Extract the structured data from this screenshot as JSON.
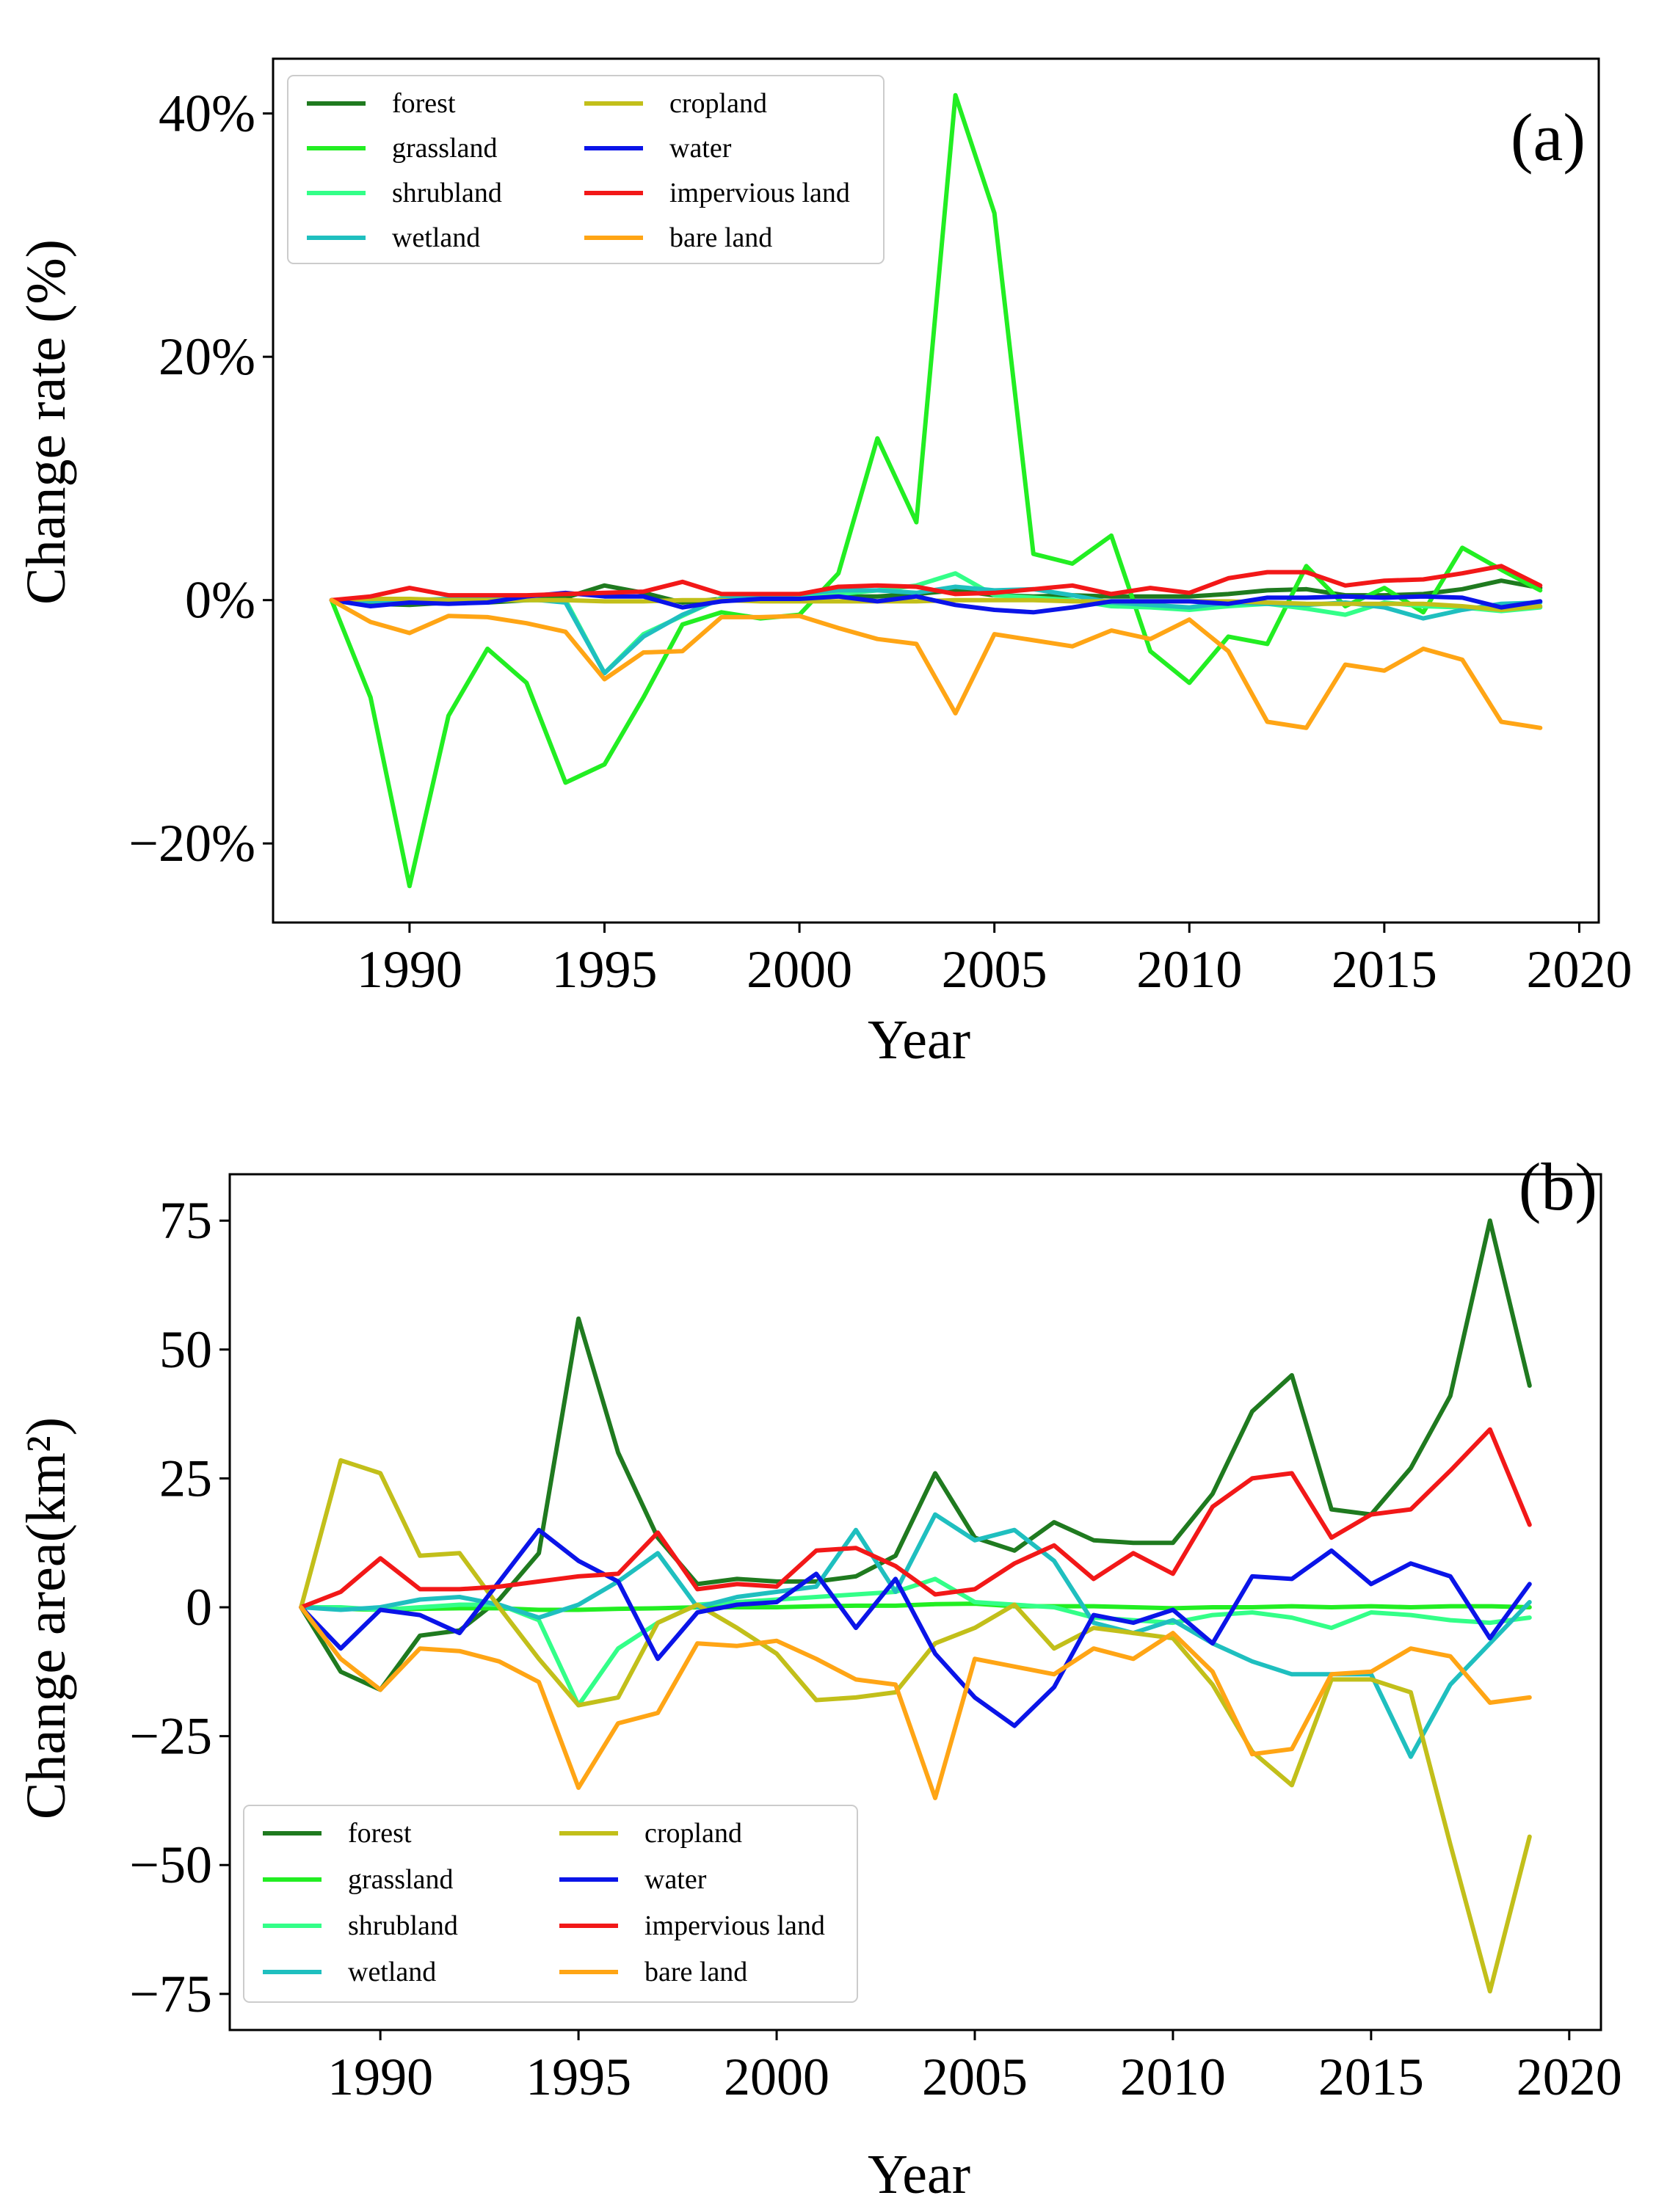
{
  "figure": {
    "background": "#ffffff"
  },
  "chart_data": [
    {
      "type": "line",
      "panel_label": "(a)",
      "xlabel": "Year",
      "ylabel": "Change rate (%)",
      "xlim": [
        1986.5,
        2020.5
      ],
      "ylim": [
        -26.5,
        44.5
      ],
      "x_ticks": [
        1990,
        1995,
        2000,
        2005,
        2010,
        2015,
        2020
      ],
      "y_ticks": [
        -20,
        0,
        20,
        40
      ],
      "y_tick_labels": [
        "−20%",
        "0%",
        "20%",
        "40%"
      ],
      "grid": false,
      "legend_position": "top-left",
      "x": [
        1988,
        1989,
        1990,
        1991,
        1992,
        1993,
        1994,
        1995,
        1996,
        1997,
        1998,
        1999,
        2000,
        2001,
        2002,
        2003,
        2004,
        2005,
        2006,
        2007,
        2008,
        2009,
        2010,
        2011,
        2012,
        2013,
        2014,
        2015,
        2016,
        2017,
        2018,
        2019
      ],
      "series": [
        {
          "name": "forest",
          "color": "#1f7a1f",
          "values": [
            0,
            -0.3,
            -0.4,
            -0.2,
            -0.2,
            0,
            0.2,
            1.2,
            0.6,
            -0.2,
            0.1,
            0.2,
            0.2,
            0.3,
            0.3,
            0.5,
            0.8,
            0.4,
            0.3,
            0.4,
            0.3,
            0.3,
            0.3,
            0.5,
            0.8,
            0.9,
            0.4,
            0.4,
            0.5,
            0.9,
            1.6,
            1.0
          ]
        },
        {
          "name": "grassland",
          "color": "#22ee22",
          "values": [
            0,
            -8,
            -23.5,
            -9.5,
            -4,
            -6.8,
            -15,
            -13.5,
            -8,
            -2,
            -1,
            -1.5,
            -1.2,
            2.2,
            13.3,
            6.4,
            41.5,
            31.8,
            3.8,
            3.0,
            5.3,
            -4.2,
            -6.8,
            -3.0,
            -3.6,
            2.8,
            -0.5,
            1.0,
            -1.0,
            4.3,
            2.5,
            0.8
          ]
        },
        {
          "name": "shrubland",
          "color": "#33ff88",
          "values": [
            0,
            -0.1,
            0,
            -0.1,
            0,
            0,
            0,
            -6,
            -2.8,
            -1.3,
            0.2,
            0.2,
            0.2,
            0.5,
            0.8,
            1.2,
            2.2,
            0.4,
            0.2,
            0,
            -0.5,
            -0.6,
            -0.8,
            -0.5,
            -0.3,
            -0.7,
            -1.2,
            -0.2,
            -0.5,
            -0.6,
            -0.9,
            -0.6
          ]
        },
        {
          "name": "wetland",
          "color": "#1fbfbf",
          "values": [
            0,
            -0.1,
            0,
            0.1,
            0.2,
            0.1,
            -0.2,
            -6,
            -3,
            -1.2,
            0.1,
            0.3,
            0.5,
            0.8,
            0.8,
            0.6,
            1.1,
            0.8,
            0.9,
            0.4,
            -0.2,
            -0.4,
            -0.6,
            -0.2,
            -0.3,
            -0.4,
            -0.2,
            -0.6,
            -1.5,
            -0.8,
            -0.3,
            -0.2
          ]
        },
        {
          "name": "cropland",
          "color": "#c2bf1a",
          "values": [
            0,
            0.1,
            0.1,
            0,
            0,
            0,
            0,
            -0.1,
            -0.1,
            0,
            0,
            -0.1,
            -0.1,
            -0.1,
            -0.1,
            -0.1,
            0,
            0,
            0,
            -0.1,
            -0.1,
            -0.1,
            -0.1,
            -0.1,
            -0.2,
            -0.3,
            -0.3,
            -0.3,
            -0.3,
            -0.5,
            -0.8,
            -0.5
          ]
        },
        {
          "name": "water",
          "color": "#0a14e8",
          "values": [
            0,
            -0.5,
            -0.2,
            -0.3,
            -0.2,
            0.3,
            0.6,
            0.3,
            0.3,
            -0.6,
            -0.1,
            0.1,
            0.1,
            0.3,
            -0.1,
            0.3,
            -0.4,
            -0.8,
            -1.0,
            -0.6,
            -0.1,
            -0.1,
            -0.1,
            -0.3,
            0.2,
            0.2,
            0.3,
            0.2,
            0.3,
            0.2,
            -0.6,
            -0.1
          ]
        },
        {
          "name": "impervious land",
          "color": "#f21818",
          "values": [
            0,
            0.3,
            1.0,
            0.4,
            0.4,
            0.4,
            0.5,
            0.6,
            0.7,
            1.5,
            0.5,
            0.5,
            0.5,
            1.1,
            1.2,
            1.1,
            0.5,
            0.6,
            0.9,
            1.2,
            0.5,
            1.0,
            0.6,
            1.8,
            2.3,
            2.3,
            1.2,
            1.6,
            1.7,
            2.2,
            2.8,
            1.2
          ]
        },
        {
          "name": "bare land",
          "color": "#ffa515",
          "values": [
            0,
            -1.8,
            -2.7,
            -1.3,
            -1.4,
            -1.9,
            -2.6,
            -6.5,
            -4.3,
            -4.2,
            -1.4,
            -1.4,
            -1.3,
            -2.3,
            -3.2,
            -3.6,
            -9.3,
            -2.8,
            -3.3,
            -3.8,
            -2.5,
            -3.2,
            -1.6,
            -4.2,
            -10,
            -10.5,
            -5.3,
            -5.8,
            -4.0,
            -4.9,
            -10,
            -10.5
          ]
        }
      ]
    },
    {
      "type": "line",
      "panel_label": "(b)",
      "xlabel": "Year",
      "ylabel": "Change area(km²)",
      "xlim": [
        1986.2,
        2020.8
      ],
      "ylim": [
        -82,
        84
      ],
      "x_ticks": [
        1990,
        1995,
        2000,
        2005,
        2010,
        2015,
        2020
      ],
      "y_ticks": [
        -75,
        -50,
        -25,
        0,
        25,
        50,
        75
      ],
      "y_tick_labels": [
        "−75",
        "−50",
        "−25",
        "0",
        "25",
        "50",
        "75"
      ],
      "grid": false,
      "legend_position": "bottom-left",
      "x": [
        1988,
        1989,
        1990,
        1991,
        1992,
        1993,
        1994,
        1995,
        1996,
        1997,
        1998,
        1999,
        2000,
        2001,
        2002,
        2003,
        2004,
        2005,
        2006,
        2007,
        2008,
        2009,
        2010,
        2011,
        2012,
        2013,
        2014,
        2015,
        2016,
        2017,
        2018,
        2019
      ],
      "series": [
        {
          "name": "forest",
          "color": "#1f7a1f",
          "values": [
            0,
            -12.5,
            -16,
            -5.5,
            -4.5,
            1.5,
            10.5,
            56,
            30,
            13.5,
            4.5,
            5.5,
            5,
            5,
            6,
            10,
            26,
            13.5,
            11,
            16.5,
            13,
            12.5,
            12.5,
            22,
            38,
            45,
            19,
            18,
            27,
            41,
            75,
            43
          ]
        },
        {
          "name": "grassland",
          "color": "#22ee22",
          "values": [
            0,
            -0.3,
            -0.5,
            -0.3,
            -0.2,
            -0.2,
            -0.5,
            -0.5,
            -0.3,
            -0.2,
            0,
            0,
            0,
            0.2,
            0.3,
            0.3,
            0.6,
            0.7,
            0.2,
            0.2,
            0.2,
            0,
            -0.2,
            0,
            0,
            0.2,
            0,
            0.2,
            0,
            0.2,
            0.2,
            0
          ]
        },
        {
          "name": "shrubland",
          "color": "#33ff88",
          "values": [
            0,
            0,
            -0.5,
            0,
            0.5,
            0.5,
            -2.5,
            -19,
            -8,
            -3,
            0.5,
            1,
            1.5,
            2,
            2.5,
            3,
            5.5,
            1,
            0.5,
            0,
            -2,
            -2.5,
            -3,
            -1.5,
            -1,
            -2,
            -4,
            -1,
            -1.5,
            -2.5,
            -3,
            -2
          ]
        },
        {
          "name": "wetland",
          "color": "#1fbfbf",
          "values": [
            0,
            -0.5,
            0,
            1.5,
            2,
            0.5,
            -2,
            0.5,
            5,
            10.5,
            0,
            2,
            3,
            4,
            15,
            3,
            18,
            13,
            15,
            9,
            -3,
            -5,
            -2.5,
            -7,
            -10.5,
            -13,
            -13,
            -13,
            -29,
            -15,
            -7,
            1
          ]
        },
        {
          "name": "cropland",
          "color": "#c2bf1a",
          "values": [
            0,
            28.5,
            26,
            10,
            10.5,
            0,
            -10,
            -19,
            -17.5,
            -3,
            0.5,
            -4,
            -9,
            -18,
            -17.5,
            -16.5,
            -7,
            -4,
            0.5,
            -8,
            -4,
            -5,
            -6,
            -15,
            -28,
            -34.5,
            -14,
            -14,
            -16.5,
            -46,
            -74.5,
            -44.5
          ]
        },
        {
          "name": "water",
          "color": "#0a14e8",
          "values": [
            0,
            -8,
            -0.5,
            -1.5,
            -5,
            5,
            15,
            9,
            5,
            -10,
            -1,
            0.5,
            1,
            6.5,
            -4,
            5.5,
            -9,
            -17.5,
            -23,
            -15.5,
            -1.5,
            -3,
            -0.5,
            -7,
            6,
            5.5,
            11,
            4.5,
            8.5,
            6,
            -6,
            4.5
          ]
        },
        {
          "name": "impervious land",
          "color": "#f21818",
          "values": [
            0,
            3,
            9.5,
            3.5,
            3.5,
            4,
            5,
            6,
            6.5,
            14.5,
            3.5,
            4.5,
            4,
            11,
            11.5,
            8,
            2.5,
            3.5,
            8.5,
            12,
            5.5,
            10.5,
            6.5,
            19.5,
            25,
            26,
            13.5,
            18,
            19,
            26.5,
            34.5,
            16
          ]
        },
        {
          "name": "bare land",
          "color": "#ffa515",
          "values": [
            0,
            -10,
            -16,
            -8,
            -8.5,
            -10.5,
            -14.5,
            -35,
            -22.5,
            -20.5,
            -7,
            -7.5,
            -6.5,
            -10,
            -14,
            -15,
            -37,
            -10,
            -11.5,
            -13,
            -8,
            -10,
            -5,
            -12.5,
            -28.5,
            -27.5,
            -13,
            -12.5,
            -8,
            -9.5,
            -18.5,
            -17.5
          ]
        }
      ]
    }
  ]
}
